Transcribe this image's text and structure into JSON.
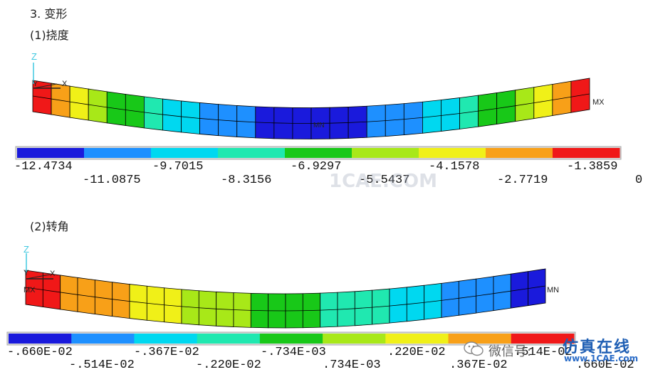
{
  "headings": {
    "section": "3. 变形",
    "deflection": "(1)挠度",
    "rotation": "(2)转角"
  },
  "plot1": {
    "axis_z": "Z",
    "axis_y": "Y",
    "axis_x": "X",
    "max_label": "MX",
    "min_label": "MN",
    "legend_colors": [
      "#1a1adc",
      "#1e90ff",
      "#00d8f0",
      "#20e8b0",
      "#18c818",
      "#a8e818",
      "#f0f018",
      "#f8a018",
      "#f01818"
    ],
    "legend_top": [
      "-12.4734",
      "-9.7015",
      "-6.9297",
      "-4.1578",
      "-1.3859"
    ],
    "legend_bottom": [
      "-11.0875",
      "-8.3156",
      "-5.5437",
      "-2.7719",
      "0"
    ]
  },
  "plot2": {
    "axis_z": "Z",
    "axis_y": "Y",
    "axis_x": "X",
    "max_label": "MX",
    "min_label": "MN",
    "legend_colors": [
      "#1a1adc",
      "#1e90ff",
      "#00d8f0",
      "#20e8b0",
      "#18c818",
      "#a8e818",
      "#f0f018",
      "#f8a018",
      "#f01818"
    ],
    "legend_top": [
      "-.660E-02",
      "-.367E-02",
      "-.734E-03",
      ".220E-02",
      ".514E-02"
    ],
    "legend_bottom": [
      "-.514E-02",
      "-.220E-02",
      ".734E-03",
      ".367E-02",
      ".660E-02"
    ]
  },
  "watermark": {
    "center": "1CAE.COM",
    "wechat": "微信号:",
    "brand": "仿真在线",
    "url": "www.1CAE.com"
  }
}
